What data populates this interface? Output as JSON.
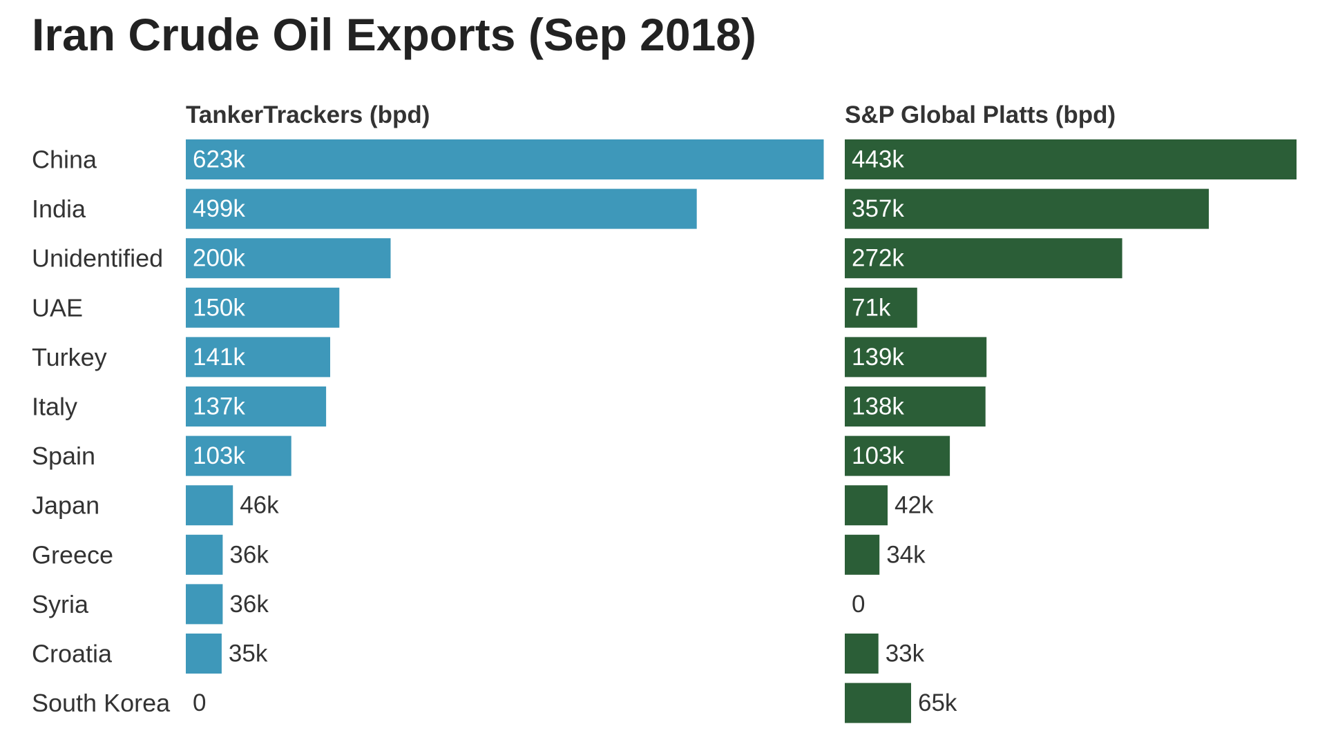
{
  "chart_data": {
    "type": "bar",
    "orientation": "horizontal",
    "title": "Iran Crude Oil Exports (Sep 2018)",
    "categories": [
      "China",
      "India",
      "Unidentified",
      "UAE",
      "Turkey",
      "Italy",
      "Spain",
      "Japan",
      "Greece",
      "Syria",
      "Croatia",
      "South Korea"
    ],
    "series": [
      {
        "name": "TankerTrackers (bpd)",
        "color": "#3e98ba",
        "values": [
          623,
          499,
          200,
          150,
          141,
          137,
          103,
          46,
          36,
          36,
          35,
          0
        ],
        "labels": [
          "623k",
          "499k",
          "200k",
          "150k",
          "141k",
          "137k",
          "103k",
          "46k",
          "36k",
          "36k",
          "35k",
          "0"
        ]
      },
      {
        "name": "S&P Global Platts (bpd)",
        "color": "#2b5e37",
        "values": [
          443,
          357,
          272,
          71,
          139,
          138,
          103,
          42,
          34,
          0,
          33,
          65
        ],
        "labels": [
          "443k",
          "357k",
          "272k",
          "71k",
          "139k",
          "138k",
          "103k",
          "42k",
          "34k",
          "0",
          "33k",
          "65k"
        ]
      }
    ],
    "units": "thousand barrels per day",
    "xlabel": "",
    "ylabel": "",
    "grid": false,
    "legend": "none"
  }
}
